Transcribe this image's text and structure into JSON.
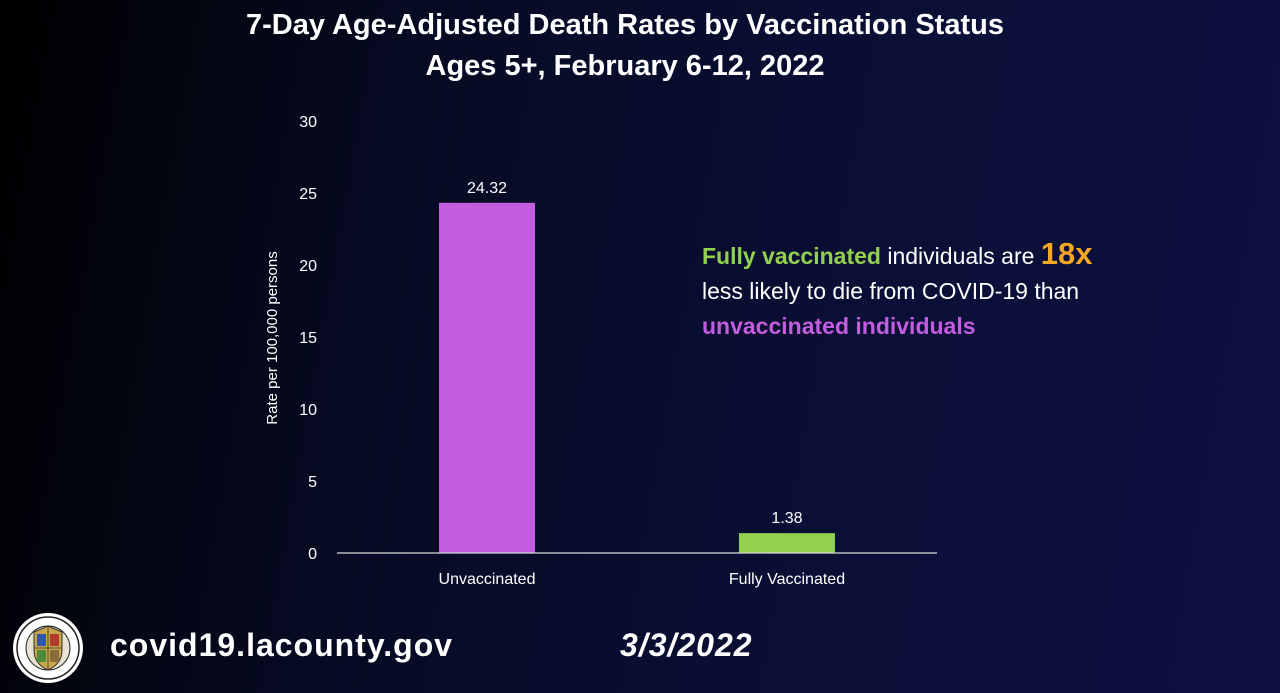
{
  "header": {
    "title_line1": "7-Day Age-Adjusted Death Rates by Vaccination Status",
    "title_line2": "Ages 5+, February 6-12, 2022"
  },
  "chart_data": {
    "type": "bar",
    "categories": [
      "Unvaccinated",
      "Fully Vaccinated"
    ],
    "values": [
      24.32,
      1.38
    ],
    "value_labels": [
      "24.32",
      "1.38"
    ],
    "colors": [
      "#c35de0",
      "#92d050"
    ],
    "ylabel": "Rate per 100,000 persons",
    "xlabel": "",
    "ylim": [
      0,
      30
    ],
    "yticks": [
      0,
      5,
      10,
      15,
      20,
      25,
      30
    ],
    "grid": false
  },
  "callout": {
    "part1": "Fully vaccinated",
    "part2": " individuals are ",
    "part3": "18x",
    "part4": "less likely to die from COVID-19 than",
    "part5": "unvaccinated individuals",
    "colors": {
      "green": "#92d050",
      "orange": "#f5a623",
      "purple": "#c35de0"
    }
  },
  "footer": {
    "url": "covid19.lacounty.gov",
    "date": "3/3/2022",
    "seal_icon": "county-seal-icon"
  }
}
